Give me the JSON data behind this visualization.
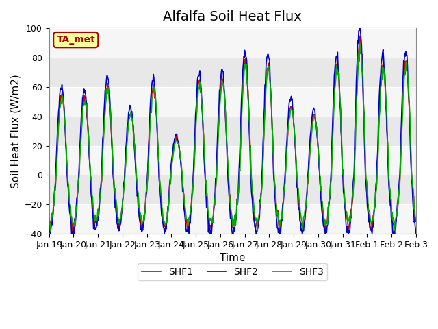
{
  "title": "Alfalfa Soil Heat Flux",
  "xlabel": "Time",
  "ylabel": "Soil Heat Flux (W/m2)",
  "ylim": [
    -40,
    100
  ],
  "yticks": [
    -40,
    -20,
    0,
    20,
    40,
    60,
    80,
    100
  ],
  "xtick_labels": [
    "Jan 19",
    "Jan 20",
    "Jan 21",
    "Jan 22",
    "Jan 23",
    "Jan 24",
    "Jan 25",
    "Jan 26",
    "Jan 27",
    "Jan 28",
    "Jan 29",
    "Jan 30",
    "Jan 31",
    "Feb 1",
    "Feb 2",
    "Feb 3"
  ],
  "colors": {
    "SHF1": "#cc0000",
    "SHF2": "#0000cc",
    "SHF3": "#00aa00"
  },
  "legend_entries": [
    "SHF1",
    "SHF2",
    "SHF3"
  ],
  "background_color": "#ffffff",
  "plot_bg_color": "#e8e8e8",
  "annotation_text": "TA_met",
  "annotation_bg": "#ffff99",
  "annotation_border": "#aa0000",
  "title_fontsize": 14,
  "axis_label_fontsize": 11,
  "tick_fontsize": 9,
  "line_width": 1.2
}
